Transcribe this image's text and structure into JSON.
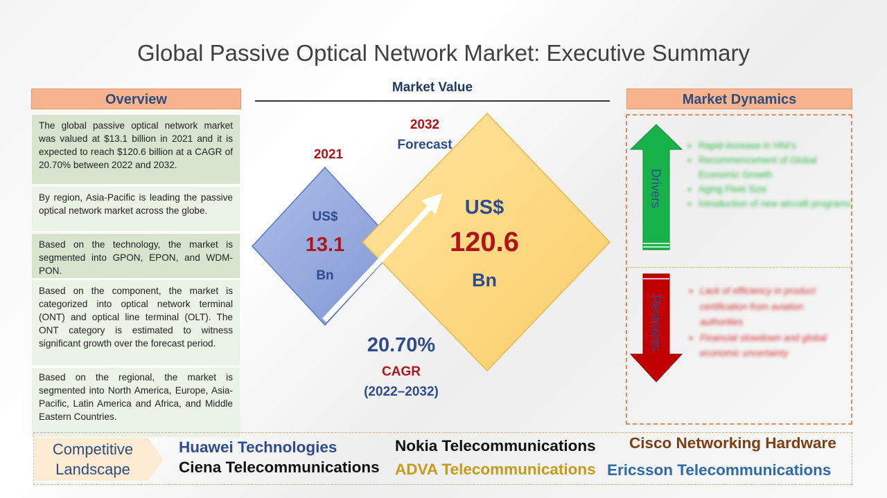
{
  "title": "Global Passive Optical Network Market: Executive Summary",
  "overview": {
    "header": "Overview",
    "paragraphs": [
      "The global passive optical network market was valued at $13.1 billion in 2021 and it is expected to reach $120.6 billion at a CAGR of 20.70% between 2022 and 2032.",
      "By region, Asia-Pacific is leading the passive optical network market across the globe.",
      "Based on the technology, the market is segmented into GPON, EPON, and WDM-PON.",
      "Based on the component, the market is categorized into optical network terminal (ONT) and optical line terminal (OLT). The ONT category is estimated to witness significant growth over the forecast period.",
      "Based on the regional, the market is segmented into North America, Europe, Asia-Pacific, Latin America and Africa, and Middle Eastern Countries."
    ]
  },
  "market_value": {
    "header": "Market Value",
    "year_2021": "2021",
    "value_2021": {
      "currency": "US$",
      "amount": "13.1",
      "unit": "Bn"
    },
    "year_2032": "2032",
    "forecast_label": "Forecast",
    "value_2032": {
      "currency": "US$",
      "amount": "120.6",
      "unit": "Bn"
    },
    "cagr_value": "20.70%",
    "cagr_label": "CAGR",
    "cagr_period": "(2022–2032)"
  },
  "dynamics": {
    "header": "Market Dynamics",
    "drivers_label": "Drivers",
    "drivers": [
      "Rapid increase in HNI's",
      "Recommencement of Global Economic Growth",
      "Aging Fleet Size",
      "Introduction of new aircraft programs"
    ],
    "restraints_label": "Restraints",
    "restraints": [
      "Lack of efficiency in product certification from aviation authorities",
      "Financial slowdown and global economic uncertainty"
    ]
  },
  "competitive": {
    "label_line1": "Competitive",
    "label_line2": "Landscape",
    "companies": [
      {
        "name": "Huawei Technologies",
        "color": "#2e4b8c"
      },
      {
        "name": "Nokia Telecommunications",
        "color": "#111111"
      },
      {
        "name": "Cisco Networking Hardware",
        "color": "#7a3f14"
      },
      {
        "name": "Ciena Telecommunications",
        "color": "#111111"
      },
      {
        "name": "ADVA Telecommunications",
        "color": "#c79a1a"
      },
      {
        "name": "Ericsson Telecommunications",
        "color": "#2e6aa8"
      }
    ]
  },
  "colors": {
    "header_fill": "#f8b48e",
    "value_red": "#b0141b",
    "navy": "#2e4b7a",
    "diamond_blue": "#8ea4da",
    "diamond_yellow": "#fdd57a",
    "driver_green": "#17b24a",
    "restraint_red": "#c00000"
  }
}
